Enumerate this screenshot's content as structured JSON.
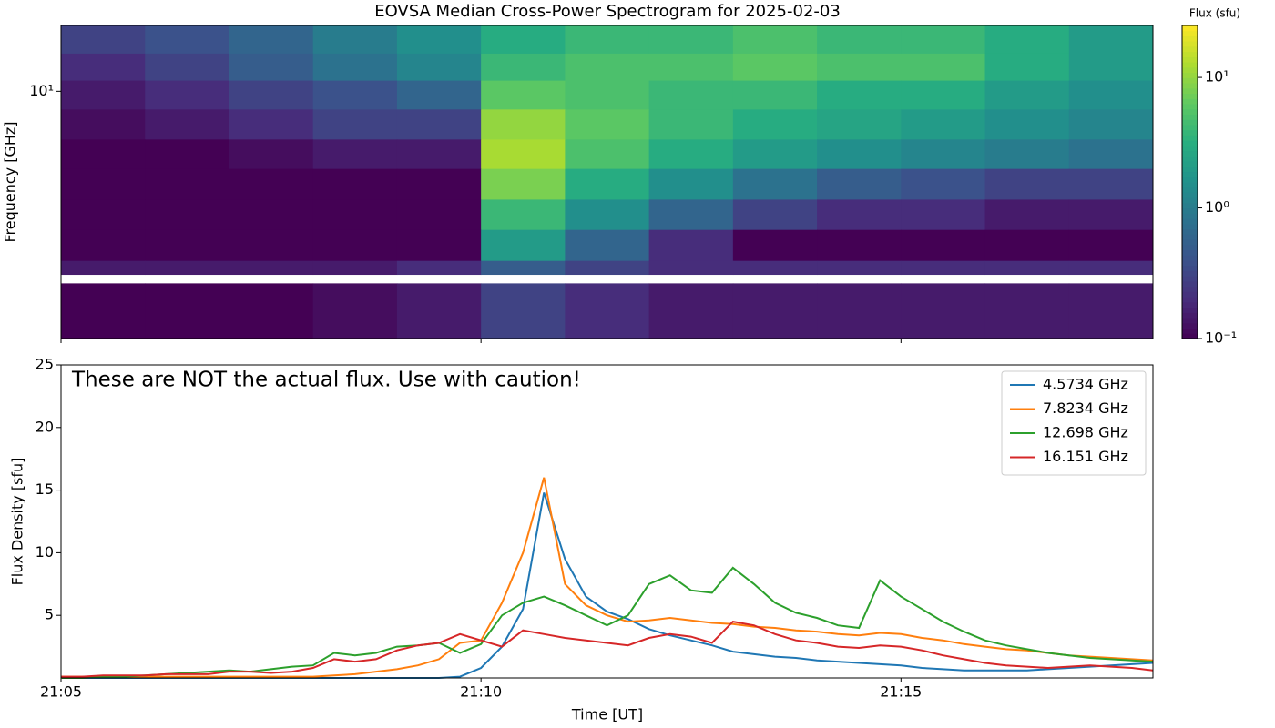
{
  "chart_data": [
    {
      "type": "heatmap",
      "title": "EOVSA Median Cross-Power Spectrogram for 2025-02-03",
      "y_label": "Frequency [GHz]",
      "y_scale": "log",
      "x": [
        1265,
        1266,
        1267,
        1268,
        1269,
        1270,
        1271,
        1272,
        1273,
        1274,
        1275,
        1276,
        1277,
        1278
      ],
      "y": [
        18,
        14,
        11,
        8.5,
        6.5,
        5,
        3.8,
        2.9,
        2.2,
        1.95,
        1.8,
        1.1
      ],
      "xlim": [
        1265,
        1278
      ],
      "ylim": [
        1.1,
        18
      ],
      "yticks": [
        {
          "value": 10,
          "label": "10¹"
        }
      ],
      "values": [
        [
          0.3,
          0.4,
          0.6,
          1.0,
          1.5,
          3,
          4,
          4,
          5,
          4,
          4,
          3,
          2
        ],
        [
          0.2,
          0.3,
          0.5,
          0.8,
          1.2,
          4,
          5,
          5,
          6,
          5,
          5,
          3,
          2
        ],
        [
          0.15,
          0.2,
          0.3,
          0.4,
          0.6,
          6,
          5,
          4,
          4,
          3,
          3,
          2,
          1.5
        ],
        [
          0.12,
          0.15,
          0.2,
          0.3,
          0.3,
          10,
          6,
          4,
          3,
          2.5,
          2,
          1.5,
          1.2
        ],
        [
          0.1,
          0.1,
          0.12,
          0.15,
          0.15,
          12,
          5,
          3,
          2,
          1.5,
          1.2,
          1,
          0.8
        ],
        [
          0.1,
          0.1,
          0.1,
          0.1,
          0.1,
          8,
          3,
          1.5,
          0.8,
          0.5,
          0.4,
          0.3,
          0.3
        ],
        [
          0.1,
          0.1,
          0.1,
          0.1,
          0.1,
          4,
          1.5,
          0.6,
          0.3,
          0.2,
          0.2,
          0.15,
          0.15
        ],
        [
          0.1,
          0.1,
          0.1,
          0.1,
          0.1,
          2,
          0.6,
          0.2,
          0.1,
          0.1,
          0.1,
          0.1,
          0.1
        ],
        [
          0.15,
          0.15,
          0.15,
          0.15,
          0.2,
          0.5,
          0.3,
          0.2,
          0.2,
          0.2,
          0.2,
          0.2,
          0.2
        ],
        [
          null,
          null,
          null,
          null,
          null,
          null,
          null,
          null,
          null,
          null,
          null,
          null,
          null
        ],
        [
          0.1,
          0.1,
          0.1,
          0.12,
          0.15,
          0.3,
          0.2,
          0.15,
          0.15,
          0.15,
          0.15,
          0.15,
          0.15
        ]
      ],
      "colormap": "viridis",
      "colorbar": {
        "label": "Flux (sfu)",
        "scale": "log",
        "lim": [
          0.1,
          25
        ],
        "ticks": [
          {
            "value": 0.1,
            "label": "10⁻¹"
          },
          {
            "value": 1,
            "label": "10⁰"
          },
          {
            "value": 10,
            "label": "10¹"
          }
        ]
      }
    },
    {
      "type": "line",
      "x_label": "Time [UT]",
      "y_label": "Flux Density [sfu]",
      "annotation": "These are NOT the actual flux. Use with caution!",
      "x": [
        1265,
        1265.25,
        1265.5,
        1265.75,
        1266,
        1266.25,
        1266.5,
        1266.75,
        1267,
        1267.25,
        1267.5,
        1267.75,
        1268,
        1268.25,
        1268.5,
        1268.75,
        1269,
        1269.25,
        1269.5,
        1269.75,
        1270,
        1270.25,
        1270.5,
        1270.75,
        1271,
        1271.25,
        1271.5,
        1271.75,
        1272,
        1272.25,
        1272.5,
        1272.75,
        1273,
        1273.25,
        1273.5,
        1273.75,
        1274,
        1274.25,
        1274.5,
        1274.75,
        1275,
        1275.25,
        1275.5,
        1275.75,
        1276,
        1276.25,
        1276.5,
        1276.75,
        1277,
        1277.25,
        1277.5,
        1277.75,
        1278
      ],
      "xlim": [
        1265,
        1278
      ],
      "xticks": [
        {
          "value": 1265,
          "label": "21:05"
        },
        {
          "value": 1270,
          "label": "21:10"
        },
        {
          "value": 1275,
          "label": "21:15"
        }
      ],
      "ylim": [
        0,
        25
      ],
      "yticks": [
        5,
        10,
        15,
        20,
        25
      ],
      "grid": false,
      "legend": "upper right",
      "series": [
        {
          "name": "4.5734 GHz",
          "color": "#1f77b4",
          "values": [
            0,
            0,
            0,
            0,
            0,
            0,
            0,
            0,
            0,
            0,
            0,
            0,
            0,
            0,
            0,
            0,
            0,
            0,
            0,
            0.1,
            0.8,
            2.5,
            5.5,
            14.8,
            9.5,
            6.5,
            5.3,
            4.7,
            3.9,
            3.4,
            3.0,
            2.6,
            2.1,
            1.9,
            1.7,
            1.6,
            1.4,
            1.3,
            1.2,
            1.1,
            1.0,
            0.8,
            0.7,
            0.6,
            0.6,
            0.6,
            0.6,
            0.7,
            0.8,
            0.9,
            1.0,
            1.1,
            1.2
          ]
        },
        {
          "name": "7.8234 GHz",
          "color": "#ff7f0e",
          "values": [
            0.1,
            0.1,
            0.1,
            0.1,
            0.1,
            0.1,
            0.1,
            0.1,
            0.1,
            0.1,
            0.1,
            0.1,
            0.1,
            0.2,
            0.3,
            0.5,
            0.7,
            1.0,
            1.5,
            2.8,
            3.0,
            6.0,
            10.0,
            16.0,
            7.5,
            5.8,
            5.0,
            4.5,
            4.6,
            4.8,
            4.6,
            4.4,
            4.3,
            4.1,
            4.0,
            3.8,
            3.7,
            3.5,
            3.4,
            3.6,
            3.5,
            3.2,
            3.0,
            2.7,
            2.5,
            2.3,
            2.2,
            2.0,
            1.8,
            1.7,
            1.6,
            1.5,
            1.4
          ]
        },
        {
          "name": "12.698 GHz",
          "color": "#2ca02c",
          "values": [
            0,
            0,
            0.1,
            0.1,
            0.2,
            0.3,
            0.4,
            0.5,
            0.6,
            0.5,
            0.7,
            0.9,
            1.0,
            2.0,
            1.8,
            2.0,
            2.5,
            2.6,
            2.8,
            2.0,
            2.7,
            5.0,
            6.0,
            6.5,
            5.8,
            5.0,
            4.2,
            5.0,
            7.5,
            8.2,
            7.0,
            6.8,
            8.8,
            7.5,
            6.0,
            5.2,
            4.8,
            4.2,
            4.0,
            7.8,
            6.5,
            5.5,
            4.5,
            3.7,
            3.0,
            2.6,
            2.3,
            2.0,
            1.8,
            1.6,
            1.5,
            1.4,
            1.3
          ]
        },
        {
          "name": "16.151 GHz",
          "color": "#d62728",
          "values": [
            0.1,
            0.1,
            0.2,
            0.2,
            0.2,
            0.3,
            0.3,
            0.3,
            0.5,
            0.5,
            0.4,
            0.5,
            0.8,
            1.5,
            1.3,
            1.5,
            2.2,
            2.6,
            2.8,
            3.5,
            3.0,
            2.5,
            3.8,
            3.5,
            3.2,
            3.0,
            2.8,
            2.6,
            3.2,
            3.5,
            3.3,
            2.8,
            4.5,
            4.2,
            3.5,
            3.0,
            2.8,
            2.5,
            2.4,
            2.6,
            2.5,
            2.2,
            1.8,
            1.5,
            1.2,
            1.0,
            0.9,
            0.8,
            0.9,
            1.0,
            0.9,
            0.8,
            0.6
          ]
        }
      ]
    }
  ]
}
